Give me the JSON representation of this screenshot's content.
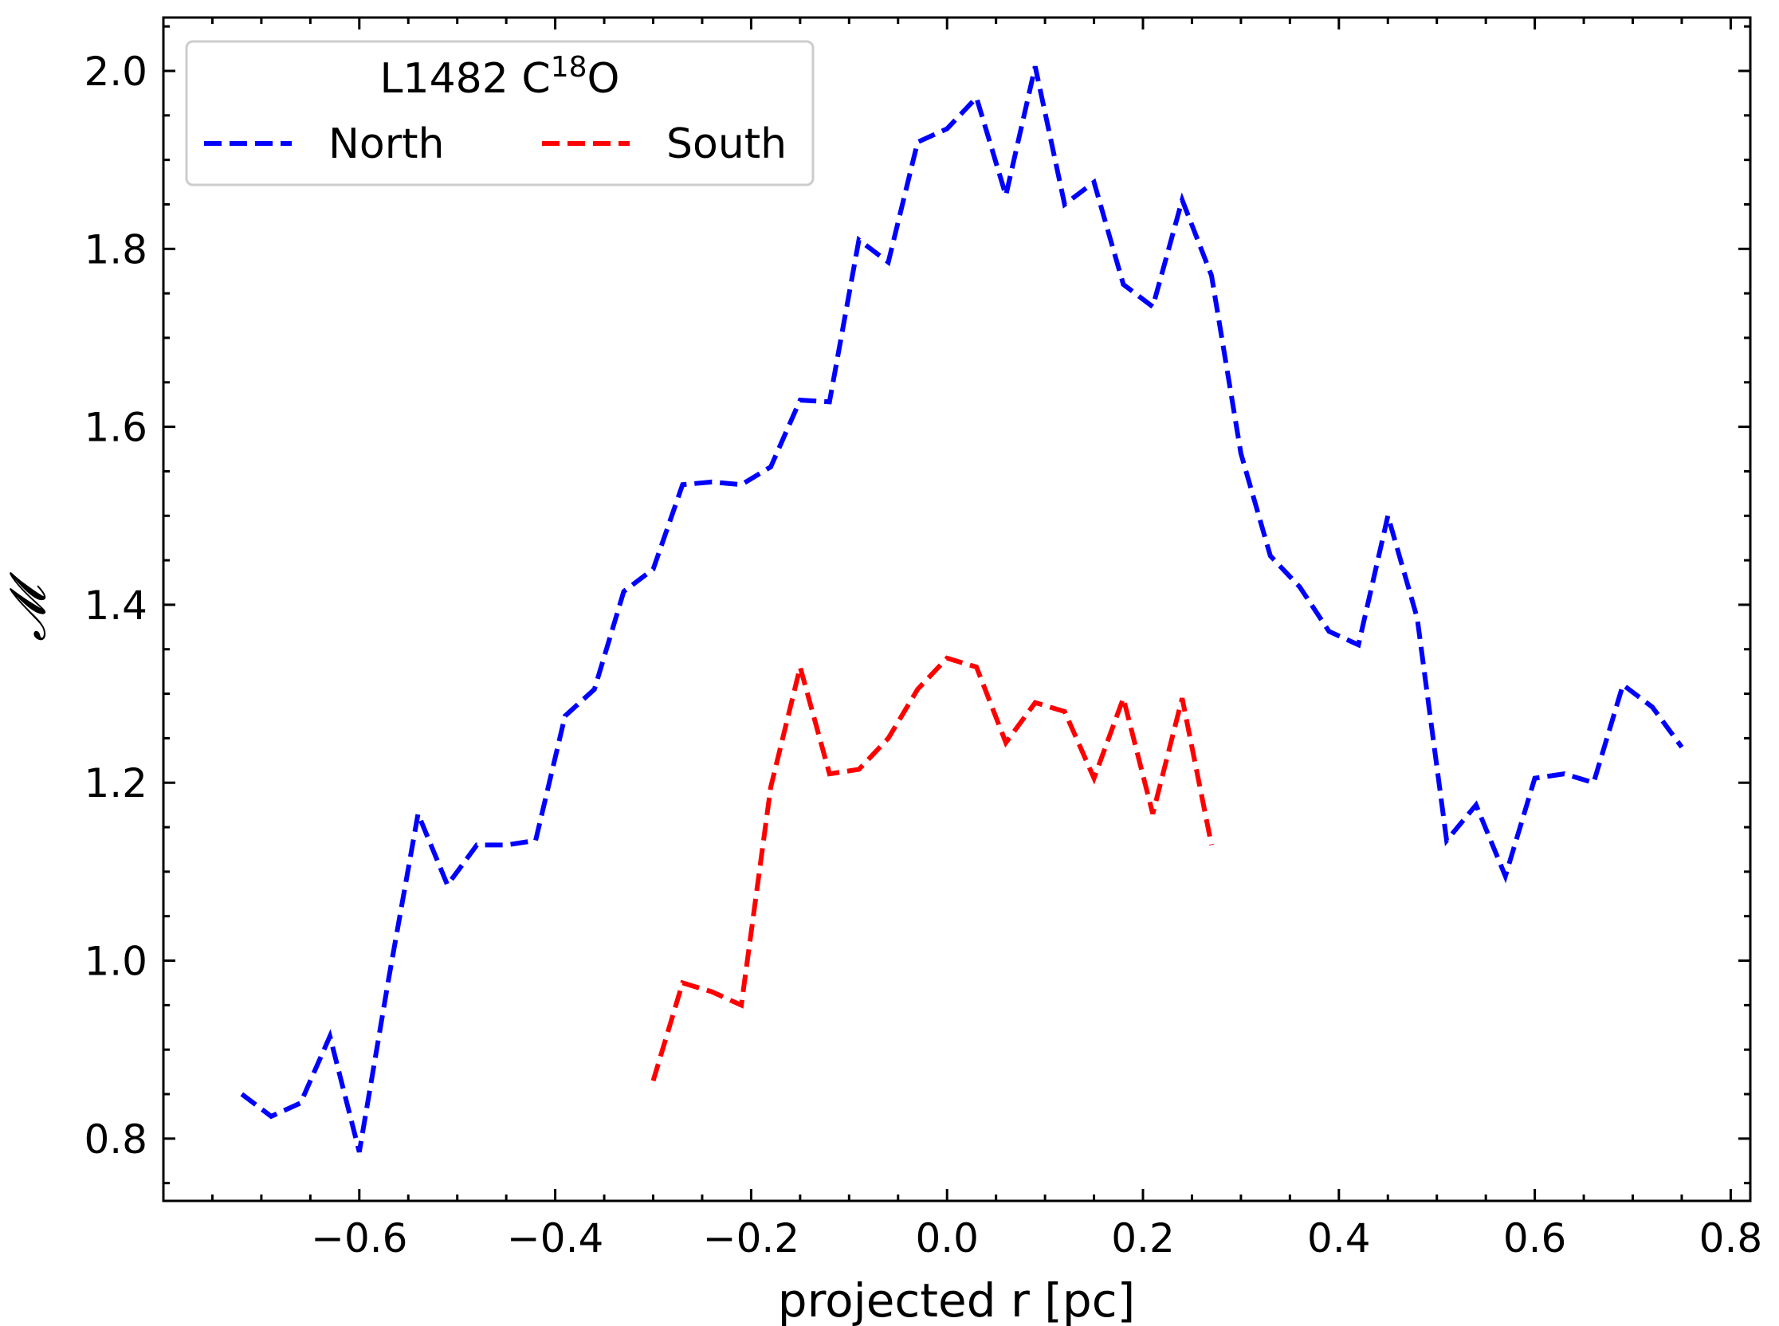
{
  "chart_data": {
    "type": "line",
    "xlabel": "projected r [pc]",
    "ylabel": "𝓜",
    "xlim": [
      -0.8,
      0.82
    ],
    "ylim": [
      0.73,
      2.06
    ],
    "xticks": [
      -0.6,
      -0.4,
      -0.2,
      0.0,
      0.2,
      0.4,
      0.6,
      0.8
    ],
    "xtick_labels": [
      "−0.6",
      "−0.4",
      "−0.2",
      "0.0",
      "0.2",
      "0.4",
      "0.6",
      "0.8"
    ],
    "yticks": [
      0.8,
      1.0,
      1.2,
      1.4,
      1.6,
      1.8,
      2.0
    ],
    "ytick_labels": [
      "0.8",
      "1.0",
      "1.2",
      "1.4",
      "1.6",
      "1.8",
      "2.0"
    ],
    "grid": false,
    "legend": {
      "placement": "top-left",
      "title_main": "L1482 C",
      "title_sup": "18",
      "title_tail": "O"
    },
    "series": [
      {
        "name": "North",
        "color": "#0000ff",
        "style": "dashed",
        "x": [
          -0.72,
          -0.69,
          -0.66,
          -0.63,
          -0.6,
          -0.57,
          -0.54,
          -0.51,
          -0.48,
          -0.45,
          -0.42,
          -0.39,
          -0.36,
          -0.33,
          -0.3,
          -0.27,
          -0.24,
          -0.21,
          -0.18,
          -0.15,
          -0.12,
          -0.09,
          -0.06,
          -0.03,
          0.0,
          0.03,
          0.06,
          0.09,
          0.12,
          0.15,
          0.18,
          0.21,
          0.24,
          0.27,
          0.3,
          0.33,
          0.36,
          0.39,
          0.42,
          0.45,
          0.48,
          0.51,
          0.54,
          0.57,
          0.6,
          0.63,
          0.66,
          0.69,
          0.72,
          0.75
        ],
        "y": [
          0.85,
          0.825,
          0.84,
          0.915,
          0.785,
          0.98,
          1.165,
          1.085,
          1.13,
          1.13,
          1.135,
          1.275,
          1.305,
          1.415,
          1.44,
          1.535,
          1.538,
          1.535,
          1.555,
          1.63,
          1.628,
          1.81,
          1.785,
          1.92,
          1.935,
          1.97,
          1.86,
          2.005,
          1.85,
          1.875,
          1.76,
          1.735,
          1.855,
          1.77,
          1.57,
          1.455,
          1.42,
          1.37,
          1.355,
          1.5,
          1.385,
          1.135,
          1.175,
          1.095,
          1.205,
          1.21,
          1.2,
          1.31,
          1.285,
          1.24
        ]
      },
      {
        "name": "South",
        "color": "#ff0000",
        "style": "dashed",
        "x": [
          -0.3,
          -0.27,
          -0.24,
          -0.21,
          -0.18,
          -0.15,
          -0.12,
          -0.09,
          -0.06,
          -0.03,
          0.0,
          0.03,
          0.06,
          0.09,
          0.12,
          0.15,
          0.18,
          0.21,
          0.24,
          0.27
        ],
        "y": [
          0.865,
          0.975,
          0.965,
          0.95,
          1.195,
          1.33,
          1.21,
          1.215,
          1.25,
          1.305,
          1.34,
          1.33,
          1.245,
          1.29,
          1.28,
          1.205,
          1.295,
          1.165,
          1.295,
          1.13
        ]
      }
    ]
  }
}
